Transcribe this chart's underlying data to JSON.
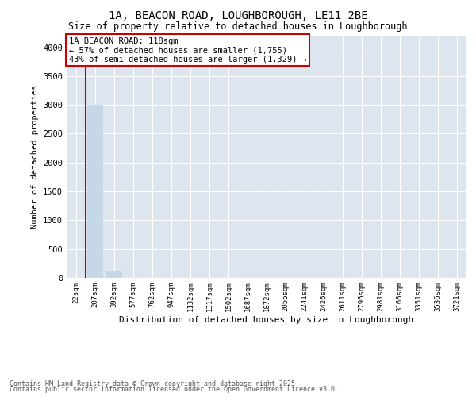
{
  "title_line1": "1A, BEACON ROAD, LOUGHBOROUGH, LE11 2BE",
  "title_line2": "Size of property relative to detached houses in Loughborough",
  "xlabel": "Distribution of detached houses by size in Loughborough",
  "ylabel": "Number of detached properties",
  "categories": [
    "22sqm",
    "207sqm",
    "392sqm",
    "577sqm",
    "762sqm",
    "947sqm",
    "1132sqm",
    "1317sqm",
    "1502sqm",
    "1687sqm",
    "1872sqm",
    "2056sqm",
    "2241sqm",
    "2426sqm",
    "2611sqm",
    "2796sqm",
    "2981sqm",
    "3166sqm",
    "3351sqm",
    "3536sqm",
    "3721sqm"
  ],
  "bar_values": [
    4,
    3000,
    130,
    0,
    0,
    0,
    0,
    0,
    0,
    0,
    0,
    0,
    0,
    0,
    0,
    0,
    0,
    0,
    0,
    0,
    0
  ],
  "bar_color_highlight": "#cc0000",
  "bar_color_normal": "#c5d8e8",
  "highlight_bar_index": 0,
  "ylim": [
    0,
    4200
  ],
  "yticks": [
    0,
    500,
    1000,
    1500,
    2000,
    2500,
    3000,
    3500,
    4000
  ],
  "annotation_title": "1A BEACON ROAD: 118sqm",
  "annotation_line2": "← 57% of detached houses are smaller (1,755)",
  "annotation_line3": "43% of semi-detached houses are larger (1,329) →",
  "annotation_box_color": "#cc0000",
  "background_color": "#dde6ef",
  "grid_color": "#ffffff",
  "fig_bg_color": "#ffffff",
  "footer_line1": "Contains HM Land Registry data © Crown copyright and database right 2025.",
  "footer_line2": "Contains public sector information licensed under the Open Government Licence v3.0.",
  "vline_color": "#cc0000",
  "vline_bar_index": 1
}
